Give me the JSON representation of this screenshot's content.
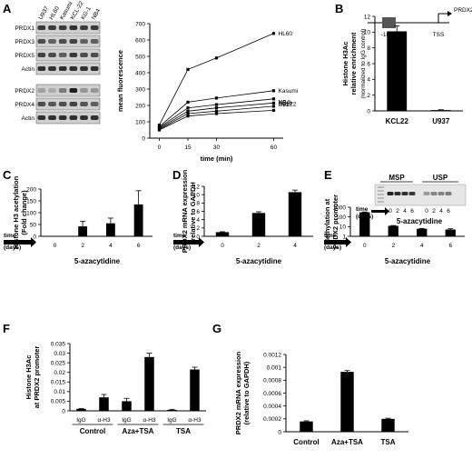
{
  "panels": {
    "A": {
      "label": "A",
      "blot_lanes": [
        "U937",
        "HL60",
        "Kasumi",
        "KCL-22",
        "KG-1",
        "NB4"
      ],
      "blot_top_rows": [
        "PRDX1",
        "PRDX3",
        "PRDX5",
        "Actin"
      ],
      "blot_bottom_rows": [
        "PRDX2",
        "PRDX4",
        "Actin"
      ],
      "chart": {
        "type": "line",
        "x": [
          0,
          15,
          30,
          60
        ],
        "xlabel": "time (min)",
        "ylabel": "mean fluorescence",
        "ylim": [
          0,
          700
        ],
        "xticks": [
          "0",
          "15",
          "30",
          "60"
        ],
        "yticks": [
          "0",
          "100",
          "200",
          "300",
          "400",
          "500",
          "600",
          "700"
        ],
        "series": [
          {
            "name": "HL60",
            "values": [
              80,
              420,
              490,
              640
            ]
          },
          {
            "name": "Kasumi",
            "values": [
              70,
              220,
              245,
              290
            ]
          },
          {
            "name": "U937",
            "values": [
              65,
              185,
              205,
              240
            ]
          },
          {
            "name": "KCL22",
            "values": [
              60,
              165,
              185,
              215
            ]
          },
          {
            "name": "KG-1",
            "values": [
              55,
              150,
              165,
              195
            ]
          },
          {
            "name": "NB4",
            "values": [
              50,
              135,
              150,
              170
            ]
          }
        ]
      }
    },
    "B": {
      "label": "B",
      "inset_distance": "-1657",
      "inset_tss": "TSS",
      "inset_gene": "PRDX2",
      "chart": {
        "type": "bar",
        "categories": [
          "KCL22",
          "U937"
        ],
        "values": [
          10.1,
          0.1
        ],
        "errors": [
          0.7,
          0.05
        ],
        "ylabel": "Histone H3Ac relative enrichment",
        "ylabel_sub": "(normalized to IgG control)",
        "ylim": [
          0,
          12
        ],
        "yticks": [
          "0",
          "2",
          "4",
          "6",
          "8",
          "10",
          "12"
        ]
      }
    },
    "C": {
      "label": "C",
      "chart": {
        "type": "bar",
        "categories": [
          "0",
          "2",
          "4",
          "6"
        ],
        "values": [
          0,
          42,
          55,
          135
        ],
        "errors": [
          0,
          22,
          22,
          58
        ],
        "ylabel": "Histone H3 acetylation (Fold change)",
        "ylim": [
          0,
          200
        ],
        "yticks": [
          "0",
          "50",
          "100",
          "150",
          "200"
        ],
        "time_label": "time (days)",
        "xlabel": "5-azacytidine"
      }
    },
    "D": {
      "label": "D",
      "chart": {
        "type": "bar",
        "categories": [
          "0",
          "2",
          "4"
        ],
        "values": [
          1,
          5.6,
          10.6
        ],
        "errors": [
          0.1,
          0.3,
          0.5
        ],
        "ylabel": "PRDX2 mRNA expression relative to GAPDH",
        "ylim": [
          0,
          12
        ],
        "yticks": [
          "0",
          "2",
          "4",
          "6",
          "8",
          "10",
          "12"
        ],
        "time_label": "time (days)",
        "xlabel": "5-azacytidine"
      }
    },
    "E": {
      "label": "E",
      "gel_msp": "MSP",
      "gel_usp": "USP",
      "gel_time_label": "time (days)",
      "gel_lanes": [
        "0",
        "2",
        "4",
        "6",
        "0",
        "2",
        "4",
        "6"
      ],
      "gel_xlabel": "5-azacytidine",
      "chart": {
        "type": "bar",
        "categories": [
          "0",
          "2",
          "4",
          "6"
        ],
        "values": [
          300,
          12,
          6,
          5
        ],
        "errors": [
          25,
          1,
          0.5,
          1
        ],
        "ylabel": "Methylation at PRDX2 promoter",
        "yscale": "log",
        "ylim": [
          1,
          1000
        ],
        "yticks": [
          "1",
          "10",
          "100",
          "1000"
        ],
        "time_label": "time (days)",
        "xlabel": "5-azacytidine"
      }
    },
    "F": {
      "label": "F",
      "chart": {
        "type": "bar",
        "categories": [
          "IgG",
          "α-H3",
          "IgG",
          "α-H3",
          "IgG",
          "α-H3"
        ],
        "groups": [
          "Control",
          "Aza+TSA",
          "TSA"
        ],
        "values": [
          0.001,
          0.007,
          0.005,
          0.028,
          0.0005,
          0.0215
        ],
        "errors": [
          0.0002,
          0.0015,
          0.0015,
          0.002,
          0.0003,
          0.0012
        ],
        "ylabel": "Histone H3Ac at PRDX2 promoter",
        "ylim": [
          0,
          0.035
        ],
        "yticks": [
          "0",
          "0.005",
          "0.01",
          "0.015",
          "0.02",
          "0.025",
          "0.03",
          "0.035"
        ]
      }
    },
    "G": {
      "label": "G",
      "chart": {
        "type": "bar",
        "categories": [
          "Control",
          "Aza+TSA",
          "TSA"
        ],
        "values": [
          0.00016,
          0.00093,
          0.0002
        ],
        "errors": [
          1e-05,
          2e-05,
          1e-05
        ],
        "ylabel": "PRDX2 mRNA expression (relative to GAPDH)",
        "ylim": [
          0,
          0.0012
        ],
        "yticks": [
          "0",
          "0.0002",
          "0.0004",
          "0.0006",
          "0.0008",
          "0.001",
          "0.0012"
        ]
      }
    }
  }
}
